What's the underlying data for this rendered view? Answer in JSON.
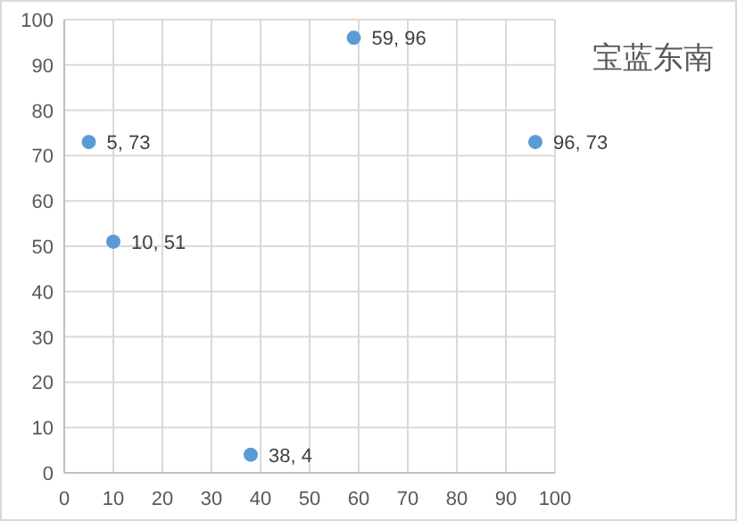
{
  "chart_data": {
    "type": "scatter",
    "x": [
      5,
      10,
      38,
      59,
      96
    ],
    "values": [
      73,
      51,
      4,
      96,
      73
    ],
    "value_labels": [
      "5, 73",
      "10, 51",
      "38, 4",
      "59, 96",
      "96, 73"
    ],
    "color": "#5b9bd5",
    "marker": "circle",
    "xlim": [
      0,
      100
    ],
    "xticks": [
      0,
      10,
      20,
      30,
      40,
      50,
      60,
      70,
      80,
      90,
      100
    ],
    "ylim": [
      0,
      100
    ],
    "yticks": [
      0,
      10,
      20,
      30,
      40,
      50,
      60,
      70,
      80,
      90,
      100
    ],
    "grid": true,
    "annotations": [
      "宝蓝东南"
    ]
  }
}
